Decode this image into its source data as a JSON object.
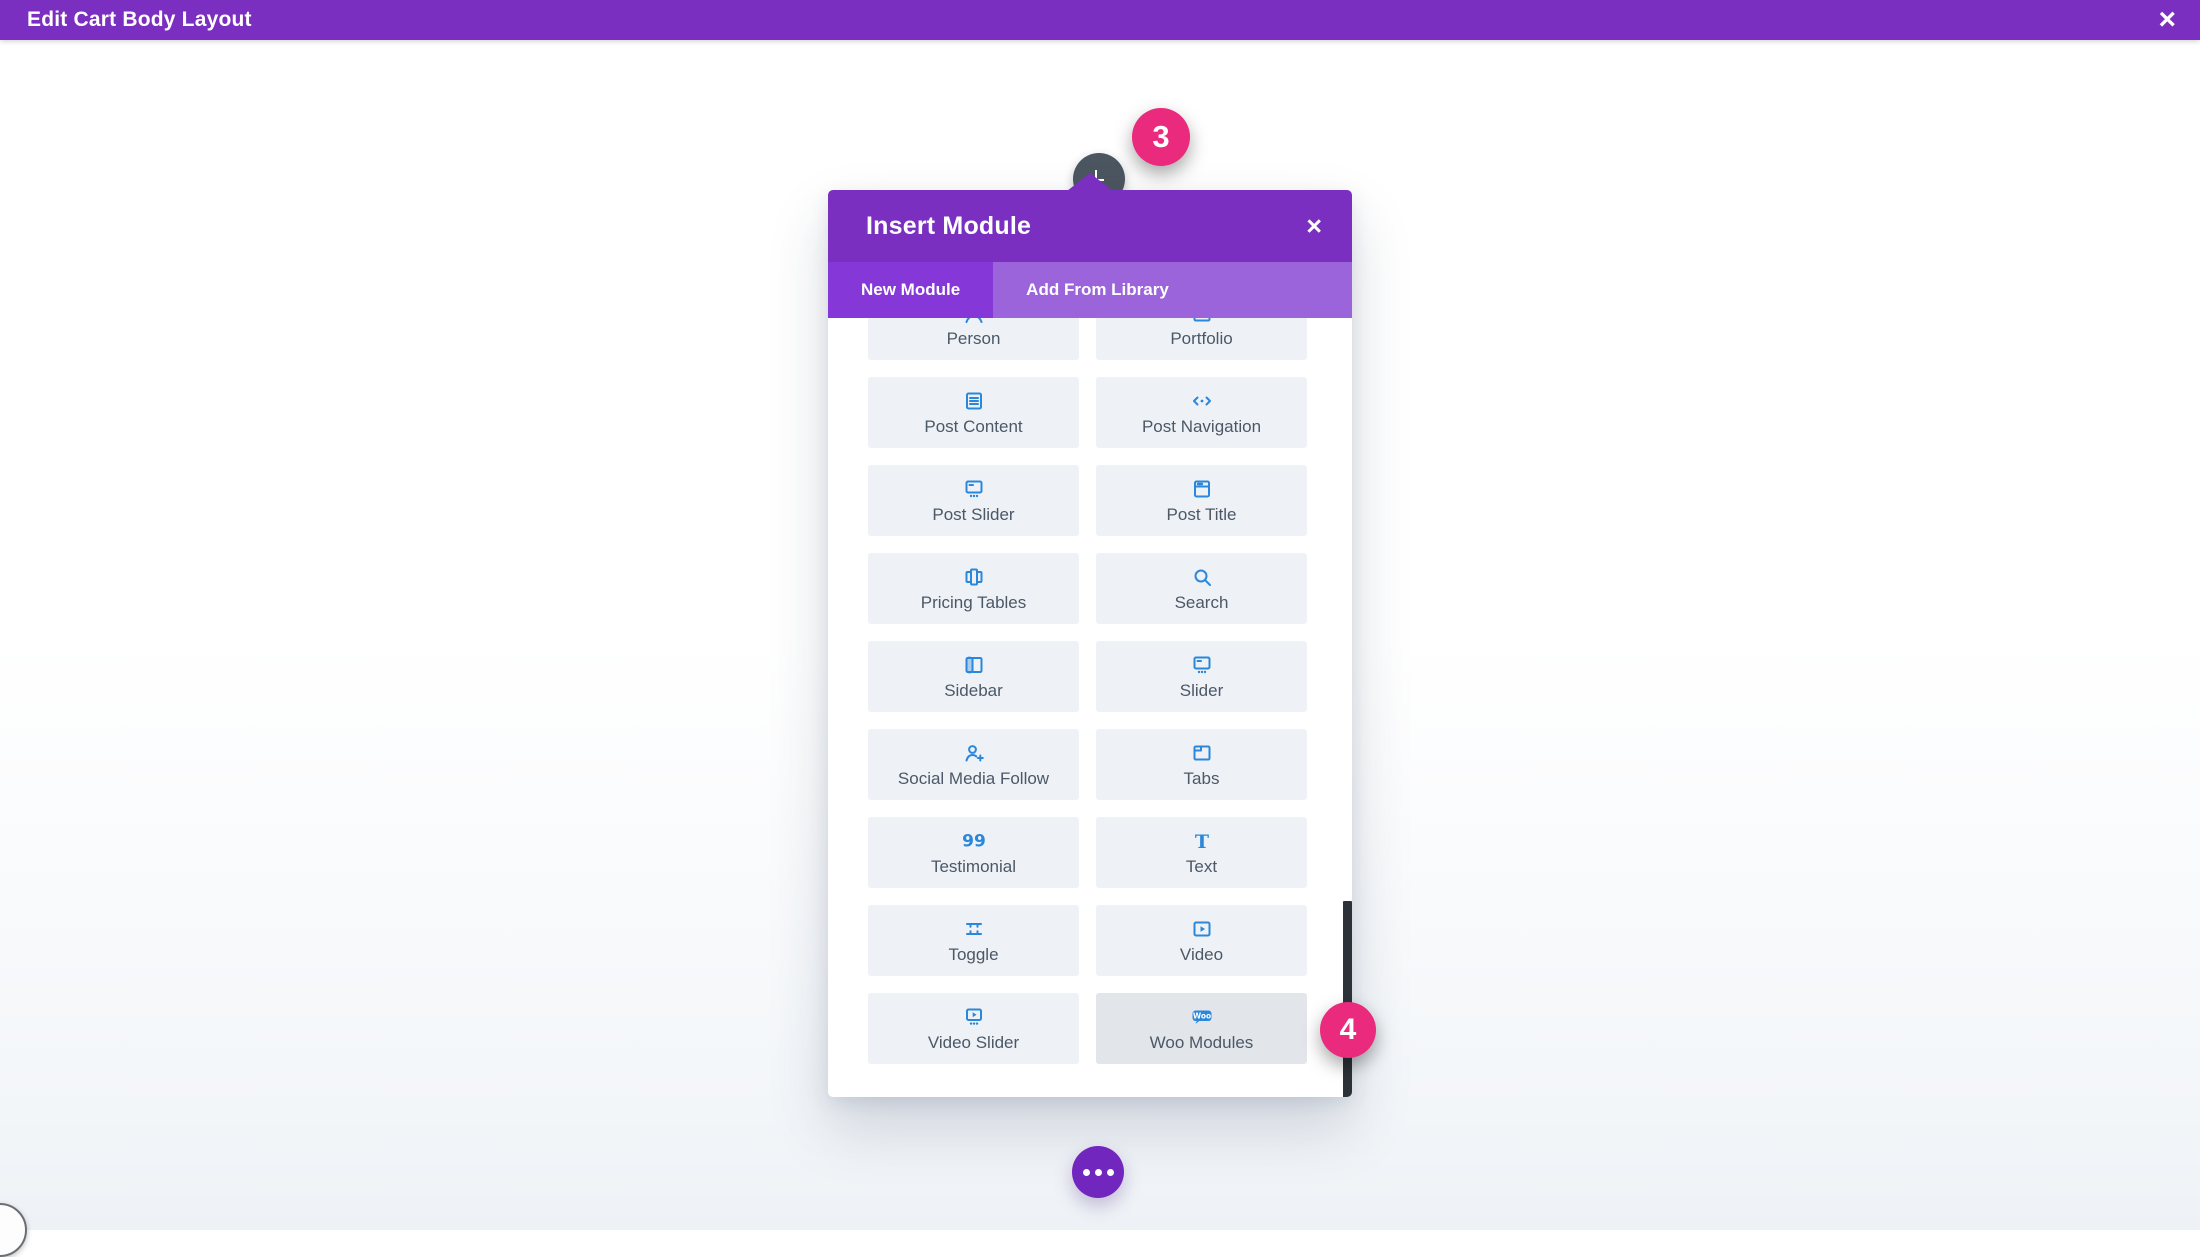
{
  "title_bar": {
    "title": "Edit Cart Body Layout",
    "close_icon": "×"
  },
  "modal": {
    "title": "Insert Module",
    "close_icon": "×",
    "tabs": [
      {
        "label": "New Module",
        "active": true
      },
      {
        "label": "Add From Library",
        "active": false
      }
    ],
    "modules": [
      {
        "label": "Person",
        "icon": "person-icon",
        "highlighted": false
      },
      {
        "label": "Portfolio",
        "icon": "portfolio-icon",
        "highlighted": false
      },
      {
        "label": "Post Content",
        "icon": "post-content-icon",
        "highlighted": false
      },
      {
        "label": "Post Navigation",
        "icon": "post-navigation-icon",
        "highlighted": false
      },
      {
        "label": "Post Slider",
        "icon": "post-slider-icon",
        "highlighted": false
      },
      {
        "label": "Post Title",
        "icon": "post-title-icon",
        "highlighted": false
      },
      {
        "label": "Pricing Tables",
        "icon": "pricing-tables-icon",
        "highlighted": false
      },
      {
        "label": "Search",
        "icon": "search-icon",
        "highlighted": false
      },
      {
        "label": "Sidebar",
        "icon": "sidebar-icon",
        "highlighted": false
      },
      {
        "label": "Slider",
        "icon": "slider-icon",
        "highlighted": false
      },
      {
        "label": "Social Media Follow",
        "icon": "social-media-follow-icon",
        "highlighted": false
      },
      {
        "label": "Tabs",
        "icon": "tabs-icon",
        "highlighted": false
      },
      {
        "label": "Testimonial",
        "icon": "testimonial-icon",
        "highlighted": false
      },
      {
        "label": "Text",
        "icon": "text-icon",
        "highlighted": false
      },
      {
        "label": "Toggle",
        "icon": "toggle-icon",
        "highlighted": false
      },
      {
        "label": "Video",
        "icon": "video-icon",
        "highlighted": false
      },
      {
        "label": "Video Slider",
        "icon": "video-slider-icon",
        "highlighted": false
      },
      {
        "label": "Woo Modules",
        "icon": "woo-modules-icon",
        "highlighted": true
      }
    ]
  },
  "annotations": {
    "badges": [
      {
        "label": "3"
      },
      {
        "label": "4"
      }
    ]
  },
  "floating": {
    "clock_icon": "clock-icon",
    "more_icon": "ellipsis-icon"
  },
  "colors": {
    "accent_purple": "#7b2fc0",
    "tab_row_purple": "#9c64da",
    "active_tab_purple": "#8637d8",
    "icon_blue": "#2b87da",
    "card_bg": "#eef2f7",
    "card_bg_highlighted": "#e2e6eb",
    "label_text": "#4c5866",
    "badge_pink": "#ea2a7d",
    "scrollbar_dark": "#2c3238",
    "clock_circle_gray": "#4c5660",
    "more_button_purple": "#7126be"
  }
}
